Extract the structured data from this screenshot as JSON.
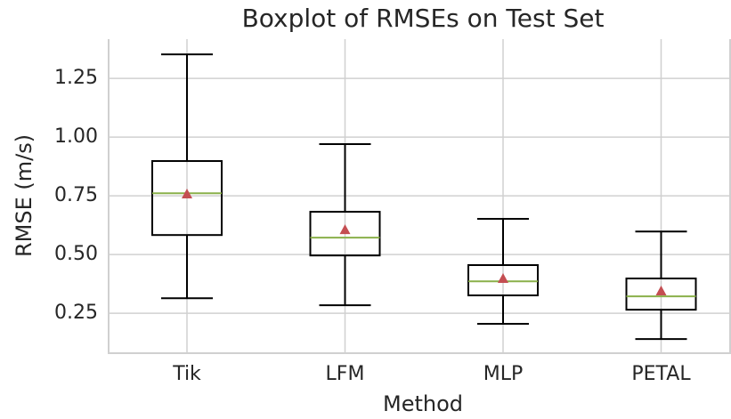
{
  "chart_data": {
    "type": "box",
    "title": "Boxplot of RMSEs on Test Set",
    "xlabel": "Method",
    "ylabel": "RMSE (m/s)",
    "categories": [
      "Tik",
      "LFM",
      "MLP",
      "PETAL"
    ],
    "whisker_low": [
      0.314,
      0.284,
      0.205,
      0.14
    ],
    "q1": [
      0.583,
      0.496,
      0.326,
      0.265
    ],
    "median": [
      0.761,
      0.572,
      0.386,
      0.322
    ],
    "q3": [
      0.898,
      0.682,
      0.455,
      0.398
    ],
    "whisker_high": [
      1.352,
      0.97,
      0.652,
      0.598
    ],
    "mean": [
      0.758,
      0.606,
      0.398,
      0.345
    ],
    "box_color": "#000000",
    "median_color": "#8ab04a",
    "mean_color": "#c44e52",
    "ylim": [
      0.08,
      1.417
    ],
    "yticks": [
      {
        "value": 0.25,
        "label": "0.25"
      },
      {
        "value": 0.5,
        "label": "0.50"
      },
      {
        "value": 0.75,
        "label": "0.75"
      },
      {
        "value": 1.0,
        "label": "1.00"
      },
      {
        "value": 1.25,
        "label": "1.25"
      }
    ],
    "grid": true
  }
}
